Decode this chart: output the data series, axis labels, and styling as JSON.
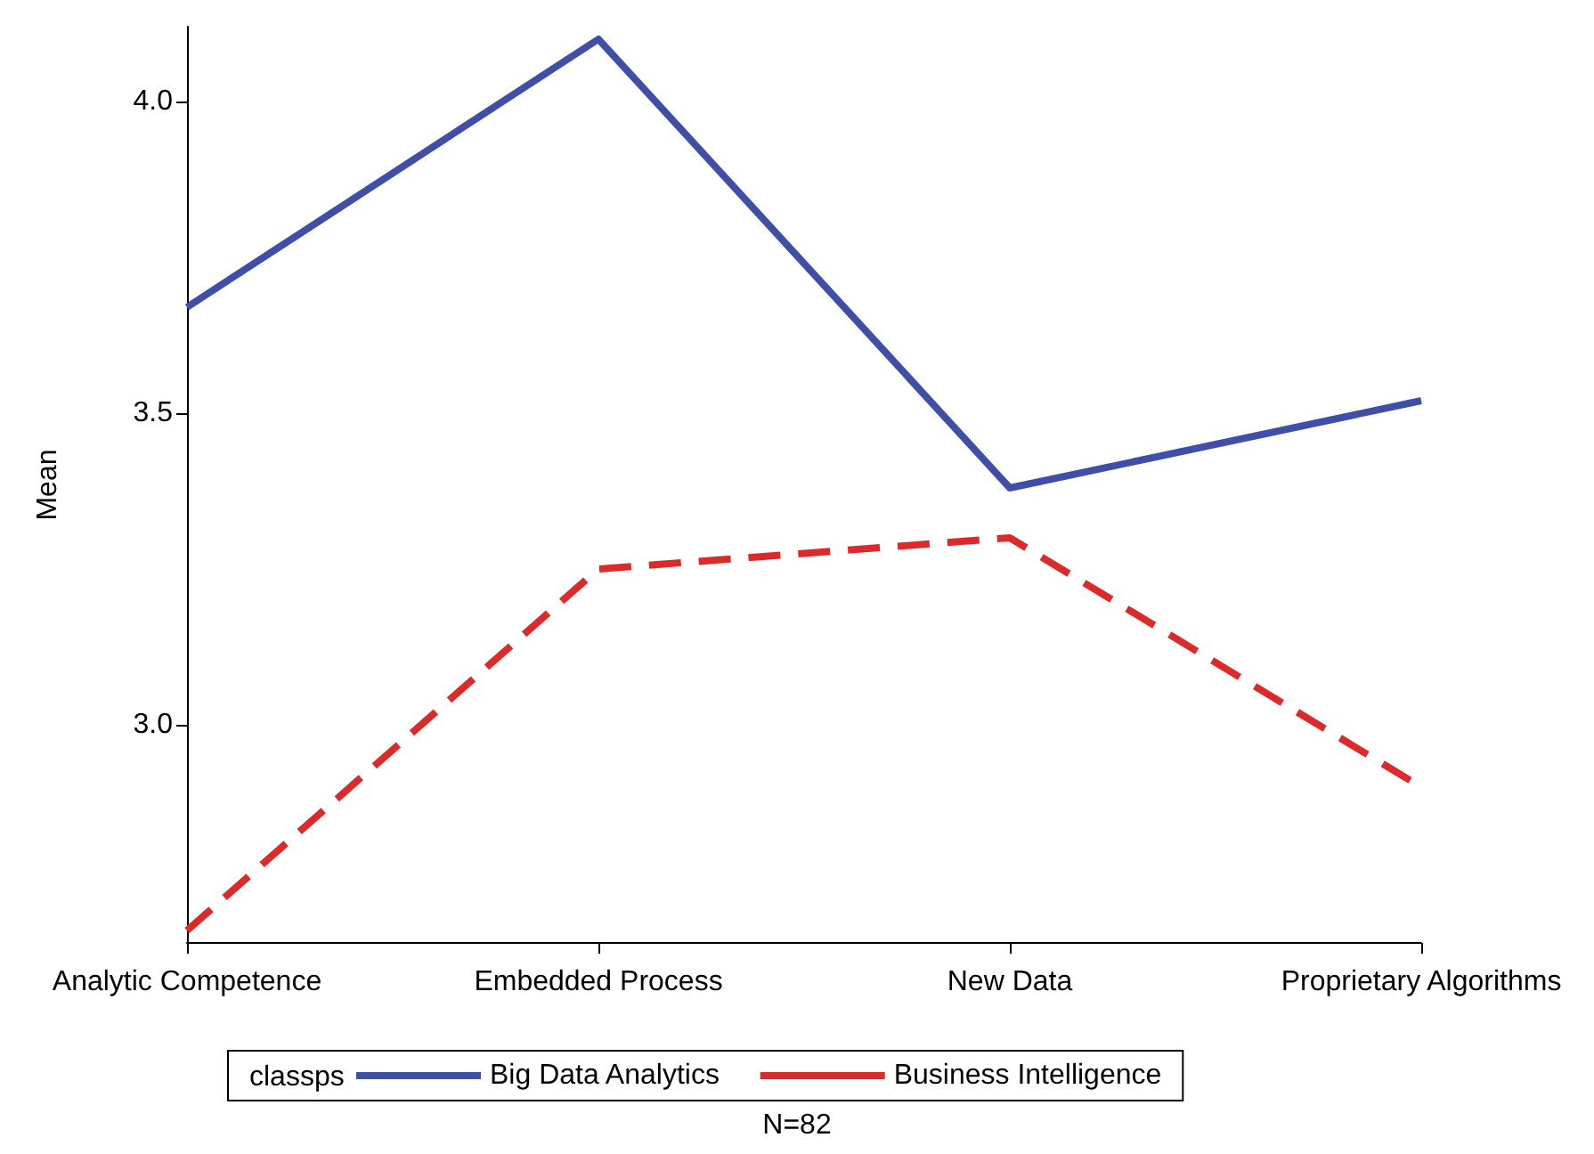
{
  "chart_data": {
    "type": "line",
    "ylabel": "Mean",
    "legend_title": "classps",
    "annotations": [
      "N=82"
    ],
    "categories": [
      "Analytic Competence",
      "Embedded Process",
      "New Data",
      "Proprietary Algorithms"
    ],
    "series": [
      {
        "name": "Big Data Analytics",
        "color": "#3f4fa8",
        "line_style": "solid",
        "values": [
          3.67,
          4.1,
          3.38,
          3.52
        ]
      },
      {
        "name": "Business Intelligence",
        "color": "#dc2a2a",
        "line_style": "dashed",
        "values": [
          2.67,
          3.25,
          3.3,
          2.9
        ]
      }
    ],
    "ylim": [
      2.65,
      4.12
    ],
    "yticks": [
      {
        "value": 3,
        "label": "3.0"
      },
      {
        "value": 3.5,
        "label": "3.5"
      },
      {
        "value": 4,
        "label": "4.0"
      }
    ],
    "grid": false,
    "legend": "bottom",
    "marker": "none"
  }
}
